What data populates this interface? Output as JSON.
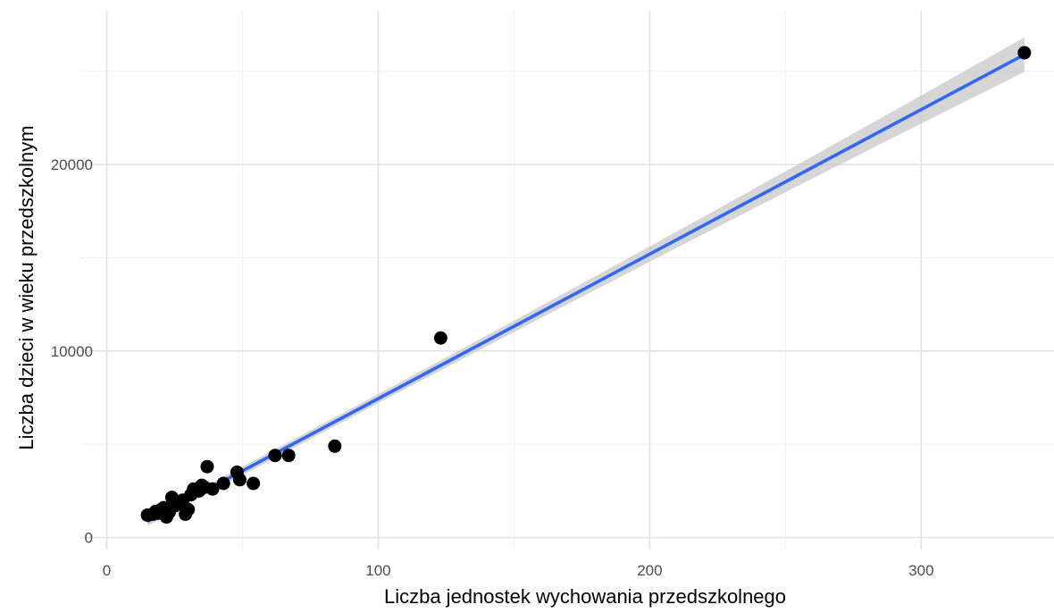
{
  "chart_data": {
    "type": "scatter",
    "xlabel": "Liczba jednostek wychowania przedszkolnego",
    "ylabel": "Liczba dzieci w wieku przedszkolnym",
    "xlim": [
      0,
      350
    ],
    "ylim": [
      -600,
      28000
    ],
    "x_ticks": [
      0,
      100,
      200,
      300
    ],
    "x_minor_ticks": [
      50,
      150,
      250
    ],
    "y_ticks": [
      0,
      10000,
      20000
    ],
    "y_minor_ticks": [
      5000,
      15000,
      25000
    ],
    "x_tick_labels": [
      "0",
      "100",
      "200",
      "300"
    ],
    "y_tick_labels": [
      "0",
      "10000",
      "20000"
    ],
    "grid": true,
    "points": [
      {
        "x": 15,
        "y": 1200
      },
      {
        "x": 17,
        "y": 1250
      },
      {
        "x": 18,
        "y": 1400
      },
      {
        "x": 19,
        "y": 1300
      },
      {
        "x": 20,
        "y": 1500
      },
      {
        "x": 21,
        "y": 1600
      },
      {
        "x": 22,
        "y": 1100
      },
      {
        "x": 23,
        "y": 1350
      },
      {
        "x": 24,
        "y": 2150
      },
      {
        "x": 25,
        "y": 1700
      },
      {
        "x": 26,
        "y": 1900
      },
      {
        "x": 27,
        "y": 1800
      },
      {
        "x": 28,
        "y": 2000
      },
      {
        "x": 29,
        "y": 1250
      },
      {
        "x": 30,
        "y": 1500
      },
      {
        "x": 31,
        "y": 2300
      },
      {
        "x": 32,
        "y": 2600
      },
      {
        "x": 34,
        "y": 2500
      },
      {
        "x": 35,
        "y": 2800
      },
      {
        "x": 36,
        "y": 2700
      },
      {
        "x": 37,
        "y": 3800
      },
      {
        "x": 39,
        "y": 2600
      },
      {
        "x": 43,
        "y": 2900
      },
      {
        "x": 48,
        "y": 3500
      },
      {
        "x": 49,
        "y": 3100
      },
      {
        "x": 54,
        "y": 2900
      },
      {
        "x": 62,
        "y": 4400
      },
      {
        "x": 67,
        "y": 4400
      },
      {
        "x": 84,
        "y": 4900
      },
      {
        "x": 123,
        "y": 10700
      },
      {
        "x": 338,
        "y": 26000
      }
    ],
    "fit_line": {
      "x": [
        15,
        338
      ],
      "y": [
        860,
        25900
      ],
      "color": "#3366ff",
      "ci_color": "#c8c8c8"
    },
    "point_color": "#000000"
  }
}
